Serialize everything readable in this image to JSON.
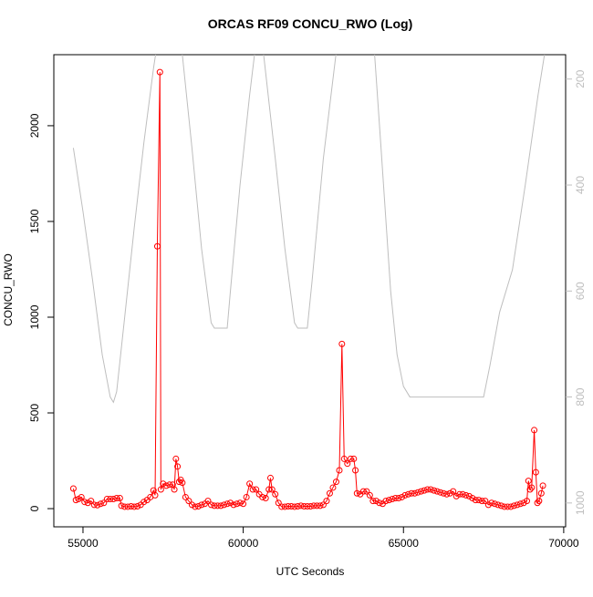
{
  "chart_data": {
    "type": "line",
    "title": "ORCAS RF09 CONCU_RWO (Log)",
    "x_label": "UTC Seconds",
    "y_label": "CONCU_RWO",
    "xlim": [
      54090,
      70060
    ],
    "xticks": [
      55000,
      60000,
      65000,
      70000
    ],
    "ylim": [
      -95,
      2371
    ],
    "yticks": [
      0,
      500,
      1000,
      1500,
      2000
    ],
    "y2lim": [
      1045,
      154
    ],
    "y2ticks": [
      200,
      400,
      600,
      800,
      1000
    ],
    "series": [
      {
        "color": "#ff0000",
        "markers": true,
        "x": [
          54700,
          54780,
          54860,
          54950,
          55050,
          55150,
          55250,
          55350,
          55450,
          55550,
          55650,
          55750,
          55850,
          55950,
          56050,
          56150,
          56200,
          56300,
          56400,
          56500,
          56600,
          56700,
          56800,
          56900,
          57000,
          57100,
          57200,
          57250,
          57320,
          57400,
          57430,
          57500,
          57600,
          57700,
          57800,
          57850,
          57900,
          57950,
          58000,
          58050,
          58100,
          58200,
          58300,
          58400,
          58500,
          58600,
          58700,
          58800,
          58900,
          59000,
          59100,
          59200,
          59300,
          59400,
          59500,
          59600,
          59700,
          59800,
          59900,
          60000,
          60100,
          60200,
          60300,
          60400,
          60500,
          60600,
          60700,
          60800,
          60850,
          60900,
          61000,
          61100,
          61200,
          61300,
          61400,
          61500,
          61600,
          61700,
          61800,
          61900,
          62000,
          62100,
          62200,
          62300,
          62400,
          62500,
          62600,
          62700,
          62800,
          62900,
          63000,
          63080,
          63150,
          63250,
          63350,
          63450,
          63500,
          63550,
          63650,
          63750,
          63850,
          63950,
          64050,
          64150,
          64250,
          64350,
          64450,
          64550,
          64650,
          64750,
          64850,
          64950,
          65050,
          65150,
          65250,
          65350,
          65450,
          65550,
          65650,
          65750,
          65850,
          65950,
          66050,
          66150,
          66250,
          66350,
          66450,
          66550,
          66650,
          66750,
          66850,
          66950,
          67050,
          67150,
          67250,
          67350,
          67450,
          67550,
          67650,
          67750,
          67850,
          67950,
          68050,
          68150,
          68250,
          68350,
          68450,
          68550,
          68650,
          68750,
          68850,
          68900,
          68950,
          69000,
          69080,
          69130,
          69180,
          69230,
          69300,
          69350
        ],
        "values": [
          105,
          45,
          50,
          60,
          35,
          30,
          40,
          20,
          18,
          25,
          30,
          50,
          50,
          50,
          55,
          55,
          15,
          10,
          10,
          12,
          10,
          12,
          20,
          35,
          45,
          60,
          95,
          70,
          1370,
          2280,
          100,
          130,
          120,
          125,
          125,
          100,
          260,
          220,
          140,
          150,
          135,
          60,
          40,
          20,
          10,
          12,
          20,
          25,
          40,
          20,
          15,
          15,
          15,
          20,
          25,
          30,
          20,
          25,
          30,
          25,
          60,
          130,
          100,
          100,
          75,
          60,
          55,
          100,
          160,
          100,
          75,
          30,
          10,
          10,
          12,
          12,
          10,
          12,
          15,
          12,
          12,
          12,
          15,
          15,
          15,
          20,
          40,
          80,
          110,
          140,
          200,
          860,
          260,
          235,
          260,
          260,
          200,
          80,
          75,
          90,
          90,
          70,
          40,
          40,
          30,
          25,
          40,
          45,
          50,
          55,
          55,
          60,
          70,
          75,
          80,
          80,
          85,
          90,
          95,
          100,
          100,
          95,
          90,
          85,
          80,
          75,
          80,
          90,
          65,
          75,
          75,
          70,
          65,
          55,
          45,
          45,
          40,
          40,
          20,
          30,
          25,
          20,
          15,
          10,
          10,
          10,
          15,
          20,
          25,
          30,
          40,
          145,
          100,
          110,
          410,
          190,
          30,
          40,
          80,
          120
        ]
      },
      {
        "color": "#bebebe",
        "axis": "y2",
        "markers": false,
        "x": [
          54700,
          55000,
          55300,
          55600,
          55850,
          55950,
          56050,
          56300,
          56600,
          56900,
          57200,
          57400,
          57700,
          58100,
          58400,
          58700,
          59000,
          59100,
          59500,
          59600,
          59900,
          60200,
          60500,
          61000,
          61300,
          61600,
          61700,
          62000,
          62150,
          62500,
          62900,
          63500,
          64100,
          64300,
          64600,
          64800,
          65000,
          65200,
          66000,
          67500,
          67700,
          68000,
          68300,
          68400,
          68500,
          68800,
          69200,
          69400
        ],
        "values": [
          330,
          450,
          580,
          720,
          800,
          810,
          790,
          650,
          480,
          320,
          180,
          100,
          60,
          154,
          330,
          520,
          660,
          670,
          670,
          600,
          400,
          230,
          80,
          350,
          520,
          660,
          670,
          670,
          580,
          350,
          150,
          60,
          154,
          330,
          600,
          720,
          780,
          800,
          800,
          800,
          740,
          640,
          580,
          560,
          520,
          400,
          230,
          154
        ]
      }
    ]
  }
}
